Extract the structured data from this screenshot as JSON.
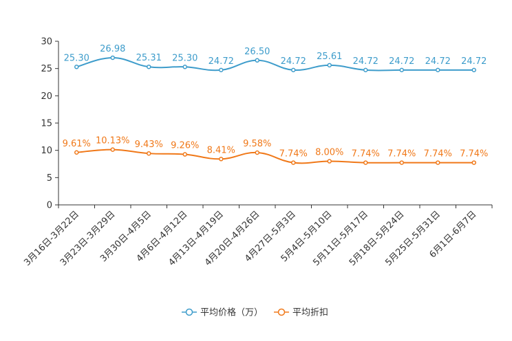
{
  "chart_data": {
    "type": "line",
    "title": "",
    "xlabel": "",
    "ylabel": "",
    "ylim": [
      0,
      30
    ],
    "yticks": [
      "0",
      "5",
      "10",
      "15",
      "20",
      "25",
      "30"
    ],
    "categories": [
      "3月16日-3月22日",
      "3月23日-3月29日",
      "3月30日-4月5日",
      "4月6日-4月12日",
      "4月13日-4月19日",
      "4月20日-4月26日",
      "4月27日-5月3日",
      "5月4日-5月10日",
      "5月11日-5月17日",
      "5月18日-5月24日",
      "5月25日-5月31日",
      "6月1日-6月7日"
    ],
    "series": [
      {
        "name": "平均价格（万）",
        "color": "#3d9ccb",
        "values": [
          25.3,
          26.98,
          25.31,
          25.3,
          24.72,
          26.5,
          24.72,
          25.61,
          24.72,
          24.72,
          24.72,
          24.72
        ],
        "labels": [
          "25.30",
          "26.98",
          "25.31",
          "25.30",
          "24.72",
          "26.50",
          "24.72",
          "25.61",
          "24.72",
          "24.72",
          "24.72",
          "24.72"
        ]
      },
      {
        "name": "平均折扣",
        "color": "#f07818",
        "values": [
          9.61,
          10.13,
          9.43,
          9.26,
          8.41,
          9.58,
          7.74,
          8.0,
          7.74,
          7.74,
          7.74,
          7.74
        ],
        "labels": [
          "9.61%",
          "10.13%",
          "9.43%",
          "9.26%",
          "8.41%",
          "9.58%",
          "7.74%",
          "8.00%",
          "7.74%",
          "7.74%",
          "7.74%",
          "7.74%"
        ]
      }
    ],
    "grid": false,
    "legend_position": "bottom-center"
  }
}
